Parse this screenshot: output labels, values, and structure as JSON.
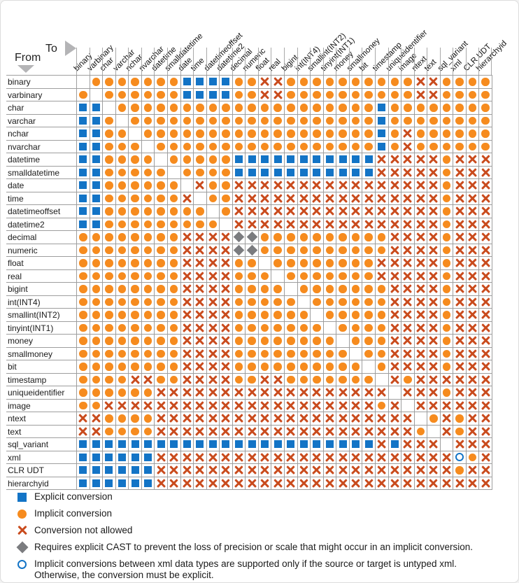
{
  "header": {
    "from_label": "From",
    "to_label": "To"
  },
  "types": [
    "binary",
    "varbinary",
    "char",
    "varchar",
    "nchar",
    "nvarchar",
    "datetime",
    "smalldatetime",
    "date",
    "time",
    "datetimeoffset",
    "datetime2",
    "decimal",
    "numeric",
    "float",
    "real",
    "bigint",
    "int(INT4)",
    "smallint(INT2)",
    "tinyint(INT1)",
    "money",
    "smallmoney",
    "bit",
    "timestamp",
    "uniqueidentifier",
    "image",
    "ntext",
    "text",
    "sql_variant",
    "xml",
    "CLR UDT",
    "hierarchyid"
  ],
  "chart_data": {
    "type": "heatmap",
    "rows_axis_label": "From",
    "cols_axis_label": "To",
    "categories": [
      "binary",
      "varbinary",
      "char",
      "varchar",
      "nchar",
      "nvarchar",
      "datetime",
      "smalldatetime",
      "date",
      "time",
      "datetimeoffset",
      "datetime2",
      "decimal",
      "numeric",
      "float",
      "real",
      "bigint",
      "int(INT4)",
      "smallint(INT2)",
      "tinyint(INT1)",
      "money",
      "smallmoney",
      "bit",
      "timestamp",
      "uniqueidentifier",
      "image",
      "ntext",
      "text",
      "sql_variant",
      "xml",
      "CLR UDT",
      "hierarchyid"
    ],
    "symbol_codes": {
      "E": "explicit conversion",
      "I": "implicit conversion",
      "X": "conversion not allowed",
      "D": "requires explicit CAST",
      "O": "xml implicit only if untyped",
      ".": "same type (blank cell)"
    },
    "matrix": [
      ".IIIIIIIEEEEIIXXIIIIIIIIIIXXIIII",
      "I.IIIIIIEEEEIIXXIIIIIIIIIIXXIIII",
      "EE.IIIIIIIIIIIIIIIIIIIIEIIIIIIII",
      "EEI.IIIIIIIIIIIIIIIIIIIEIIIIIIII",
      "EEII.IIIIIIIIIIIIIIIIIIEIXIIIIII",
      "EEIII.IIIIIIIIIIIIIIIIIEIXIIIIII",
      "EEIIII.IIIIIEEEEEEEEEEEXXXXXIXXX",
      "EEIIIII.IIIIEEEEEEEEEEEXXXXXIXXX",
      "EEIIIIII.XIIXXXXXXXXXXXXXXXXIXXX",
      "EEIIIIIIX.IIXXXXXXXXXXXXXXXXIXXX",
      "EEIIIIIIII.IXXXXXXXXXXXXXXXXIXXX",
      "EEIIIIIIIII.XXXXXXXXXXXXXXXXIXXX",
      "IIIIIIIIXXXXDDIIIIIIIIIIXXXXIXXX",
      "IIIIIIIIXXXXDDIIIIIIIIIIXXXXIXXX",
      "IIIIIIIIXXXXII.IIIIIIIIXXXXXIXXX",
      "IIIIIIIIXXXXIII.IIIIIIIXXXXXIXXX",
      "IIIIIIIIXXXXIIII.IIIIIIIXXXXIXXX",
      "IIIIIIIIXXXXIIIII.IIIIIIXXXXIXXX",
      "IIIIIIIIXXXXIIIIII.IIIIIXXXXIXXX",
      "IIIIIIIIXXXXIIIIIII.IIIIXXXXIXXX",
      "IIIIIIIIXXXXIIIIIIII.IIIXXXXIXXX",
      "IIIIIIIIXXXXIIIIIIIII.IIXXXXIXXX",
      "IIIIIIIIXXXXIIIIIIIIII.IXXXXIXXX",
      "IIIIXXIIXXXXIIXXIIIIIII.XIXXXXXX",
      "IIIIIIXXXXXXXXXXXXXXXXXX.XXXIXXX",
      "IIXXXXXXXXXXXXXXXXXXXXXIX.XXXXXX",
      "XXIIIIXXXXXXXXXXXXXXXXXXXX.IXIXX",
      "XXIIIIXXXXXXXXXXXXXXXXXXXXI.XIXX",
      "EEEEEEEEEEEEEEEEEEEEEEEXEXXX.XXX",
      "EEEEEEXXXXXXXXXXXXXXXXXXXXXXXOIX",
      "EEEEEEXXXXXXXXXXXXXXXXXXXXXXXIXX",
      "EEEEEEXXXXXXXXXXXXXXXXXXXXXXXXXX"
    ]
  },
  "legend": {
    "items": [
      {
        "code": "E",
        "label": "Explicit conversion"
      },
      {
        "code": "I",
        "label": "Implicit conversion"
      },
      {
        "code": "X",
        "label": "Conversion not allowed"
      },
      {
        "code": "D",
        "label": "Requires explicit CAST to prevent the loss of precision or scale that might occur in an implicit conversion."
      },
      {
        "code": "O",
        "label": "Implicit conversions between xml data types are supported only if the source or target is untyped xml.",
        "label_line2": "Otherwise, the conversion must be explicit."
      }
    ]
  },
  "colors": {
    "explicit": "#1374C6",
    "implicit": "#F68B1E",
    "not_allowed": "#C94B1D",
    "cast_diamond": "#7B7C7F",
    "xml_open_circle": "#1374C6",
    "gridline": "#9E9E9E"
  }
}
